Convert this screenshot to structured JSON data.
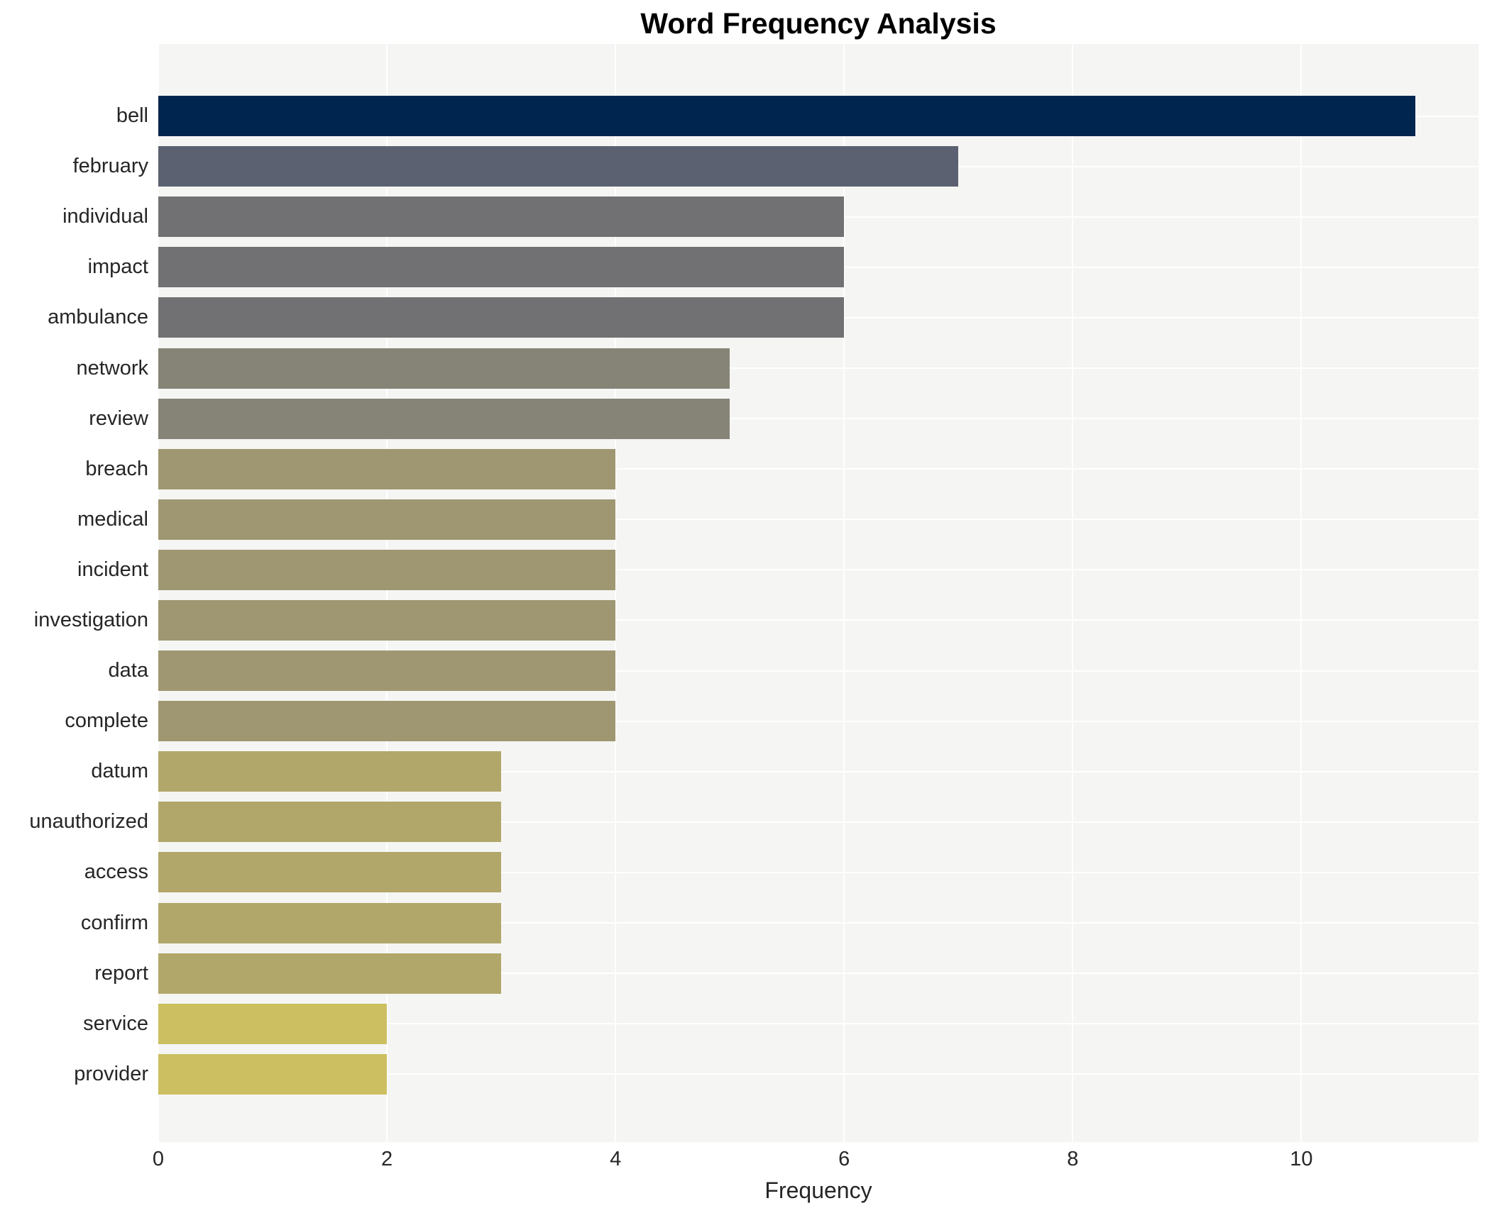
{
  "chart_data": {
    "type": "bar",
    "orientation": "horizontal",
    "title": "Word Frequency Analysis",
    "xlabel": "Frequency",
    "ylabel": "",
    "categories": [
      "bell",
      "february",
      "individual",
      "impact",
      "ambulance",
      "network",
      "review",
      "breach",
      "medical",
      "incident",
      "investigation",
      "data",
      "complete",
      "datum",
      "unauthorized",
      "access",
      "confirm",
      "report",
      "service",
      "provider"
    ],
    "values": [
      11,
      7,
      6,
      6,
      6,
      5,
      5,
      4,
      4,
      4,
      4,
      4,
      4,
      3,
      3,
      3,
      3,
      3,
      2,
      2
    ],
    "bar_colors": [
      "#00254f",
      "#5b6170",
      "#717173",
      "#717173",
      "#717173",
      "#868477",
      "#868477",
      "#9f9772",
      "#9f9772",
      "#9f9772",
      "#9f9772",
      "#9f9772",
      "#9f9772",
      "#b1a76a",
      "#b1a76a",
      "#b1a76a",
      "#b1a76a",
      "#b1a76a",
      "#ccbf62",
      "#ccbf62"
    ],
    "xlim": [
      0,
      11.55
    ],
    "xticks": [
      0,
      2,
      4,
      6,
      8,
      10
    ],
    "grid": true,
    "legend": false,
    "colors": {
      "plot_background": "#f5f5f3",
      "figure_background": "#ffffff",
      "gridline": "#ffffff",
      "title_text": "#000000",
      "axis_text": "#262626"
    }
  }
}
